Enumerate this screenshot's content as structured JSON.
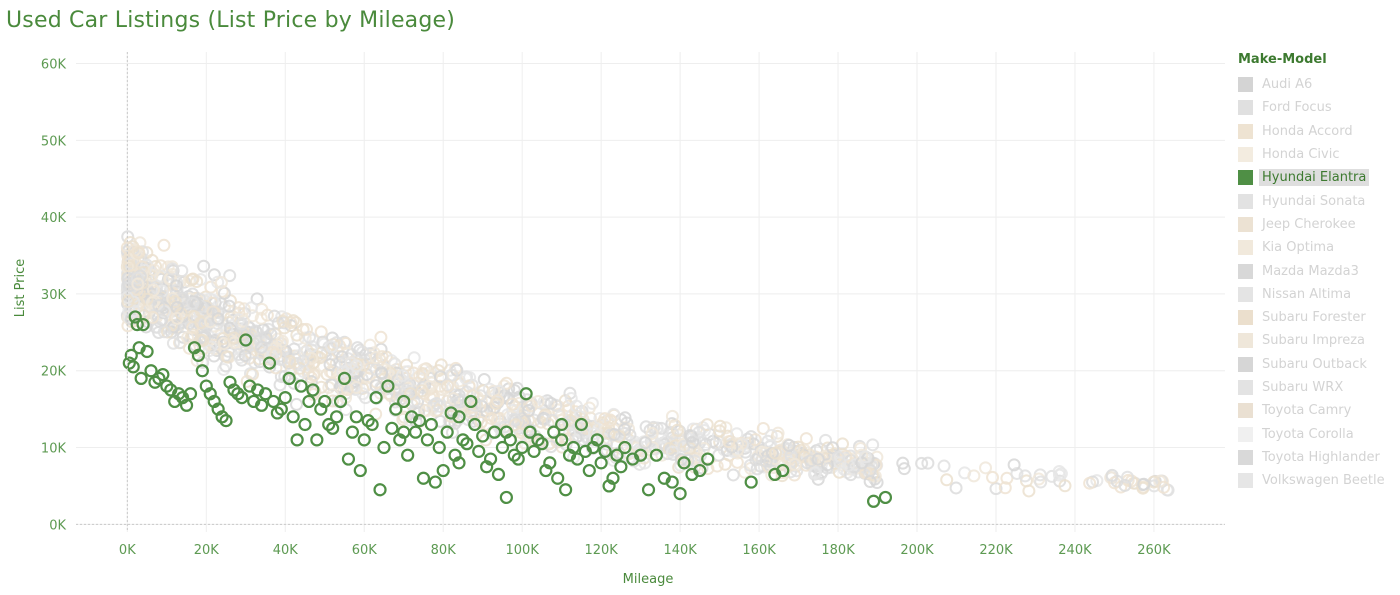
{
  "title": "Used Car Listings (List Price by Mileage)",
  "legend": {
    "title": "Make-Model",
    "items": [
      {
        "label": "Audi A6",
        "color": "#d4d4d4",
        "active": false
      },
      {
        "label": "Ford Focus",
        "color": "#e0e0e0",
        "active": false
      },
      {
        "label": "Honda Accord",
        "color": "#eee3d2",
        "active": false
      },
      {
        "label": "Honda Civic",
        "color": "#f3ece0",
        "active": false
      },
      {
        "label": "Hyundai Elantra",
        "color": "#4f8f45",
        "active": true
      },
      {
        "label": "Hyundai Sonata",
        "color": "#e2e2e2",
        "active": false
      },
      {
        "label": "Jeep Cherokee",
        "color": "#ece2d3",
        "active": false
      },
      {
        "label": "Kia Optima",
        "color": "#f1e9dc",
        "active": false
      },
      {
        "label": "Mazda Mazda3",
        "color": "#d8d8d8",
        "active": false
      },
      {
        "label": "Nissan Altima",
        "color": "#e4e4e4",
        "active": false
      },
      {
        "label": "Subaru Forester",
        "color": "#ebdfcd",
        "active": false
      },
      {
        "label": "Subaru Impreza",
        "color": "#efe7da",
        "active": false
      },
      {
        "label": "Subaru Outback",
        "color": "#d6d6d6",
        "active": false
      },
      {
        "label": "Subaru WRX",
        "color": "#e3e3e3",
        "active": false
      },
      {
        "label": "Toyota Camry",
        "color": "#eae0d2",
        "active": false
      },
      {
        "label": "Toyota Corolla",
        "color": "#f0f0f0",
        "active": false
      },
      {
        "label": "Toyota Highlander",
        "color": "#d9d9d9",
        "active": false
      },
      {
        "label": "Volkswagen Beetle",
        "color": "#e6e6e6",
        "active": false
      }
    ]
  },
  "chart_data": {
    "type": "scatter",
    "title": "Used Car Listings (List Price by Mileage)",
    "xlabel": "Mileage",
    "ylabel": "List Price",
    "xlim": [
      -13000,
      278000
    ],
    "ylim": [
      -1000,
      61500
    ],
    "x_ticks": [
      "0K",
      "20K",
      "40K",
      "60K",
      "80K",
      "100K",
      "120K",
      "140K",
      "160K",
      "180K",
      "200K",
      "220K",
      "240K",
      "260K"
    ],
    "x_tick_values": [
      0,
      20000,
      40000,
      60000,
      80000,
      100000,
      120000,
      140000,
      160000,
      180000,
      200000,
      220000,
      240000,
      260000
    ],
    "y_ticks": [
      "0K",
      "10K",
      "20K",
      "30K",
      "40K",
      "50K",
      "60K"
    ],
    "y_tick_values": [
      0,
      10000,
      20000,
      30000,
      40000,
      50000,
      60000
    ],
    "grid": true,
    "legend_position": "right",
    "highlighted_series": "Hyundai Elantra",
    "series": [
      {
        "name": "Hyundai Elantra",
        "color": "#4f8f45",
        "points": [
          [
            500,
            21000
          ],
          [
            1500,
            20500
          ],
          [
            2000,
            27000
          ],
          [
            2500,
            26000
          ],
          [
            3000,
            23000
          ],
          [
            4000,
            26000
          ],
          [
            5000,
            22500
          ],
          [
            1000,
            22000
          ],
          [
            3500,
            19000
          ],
          [
            6000,
            20000
          ],
          [
            7000,
            18500
          ],
          [
            8000,
            19000
          ],
          [
            9000,
            19500
          ],
          [
            10000,
            18000
          ],
          [
            11000,
            17500
          ],
          [
            12000,
            16000
          ],
          [
            13000,
            17000
          ],
          [
            14000,
            16500
          ],
          [
            15000,
            15500
          ],
          [
            16000,
            17000
          ],
          [
            17000,
            23000
          ],
          [
            18000,
            22000
          ],
          [
            19000,
            20000
          ],
          [
            20000,
            18000
          ],
          [
            21000,
            17000
          ],
          [
            22000,
            16000
          ],
          [
            23000,
            15000
          ],
          [
            24000,
            14000
          ],
          [
            25000,
            13500
          ],
          [
            26000,
            18500
          ],
          [
            27000,
            17500
          ],
          [
            28000,
            17000
          ],
          [
            29000,
            16500
          ],
          [
            30000,
            24000
          ],
          [
            31000,
            18000
          ],
          [
            32000,
            16000
          ],
          [
            33000,
            17500
          ],
          [
            34000,
            15500
          ],
          [
            35000,
            17000
          ],
          [
            36000,
            21000
          ],
          [
            37000,
            16000
          ],
          [
            38000,
            14500
          ],
          [
            39000,
            15000
          ],
          [
            40000,
            16500
          ],
          [
            41000,
            19000
          ],
          [
            42000,
            14000
          ],
          [
            43000,
            11000
          ],
          [
            44000,
            18000
          ],
          [
            45000,
            13000
          ],
          [
            46000,
            16000
          ],
          [
            47000,
            17500
          ],
          [
            48000,
            11000
          ],
          [
            49000,
            15000
          ],
          [
            50000,
            16000
          ],
          [
            51000,
            13000
          ],
          [
            52000,
            12500
          ],
          [
            53000,
            14000
          ],
          [
            54000,
            16000
          ],
          [
            55000,
            19000
          ],
          [
            56000,
            8500
          ],
          [
            57000,
            12000
          ],
          [
            58000,
            14000
          ],
          [
            59000,
            7000
          ],
          [
            60000,
            11000
          ],
          [
            61000,
            13500
          ],
          [
            62000,
            13000
          ],
          [
            63000,
            16500
          ],
          [
            64000,
            4500
          ],
          [
            65000,
            10000
          ],
          [
            66000,
            18000
          ],
          [
            67000,
            12500
          ],
          [
            68000,
            15000
          ],
          [
            69000,
            11000
          ],
          [
            70000,
            12000
          ],
          [
            71000,
            9000
          ],
          [
            72000,
            14000
          ],
          [
            73000,
            12000
          ],
          [
            74000,
            13500
          ],
          [
            75000,
            6000
          ],
          [
            76000,
            11000
          ],
          [
            77000,
            13000
          ],
          [
            78000,
            5500
          ],
          [
            79000,
            10000
          ],
          [
            80000,
            7000
          ],
          [
            81000,
            12000
          ],
          [
            82000,
            14500
          ],
          [
            83000,
            9000
          ],
          [
            84000,
            8000
          ],
          [
            85000,
            11000
          ],
          [
            86000,
            10500
          ],
          [
            87000,
            16000
          ],
          [
            88000,
            13000
          ],
          [
            89000,
            9500
          ],
          [
            90000,
            11500
          ],
          [
            91000,
            7500
          ],
          [
            92000,
            8500
          ],
          [
            93000,
            12000
          ],
          [
            94000,
            6500
          ],
          [
            95000,
            10000
          ],
          [
            96000,
            3500
          ],
          [
            97000,
            11000
          ],
          [
            98000,
            9000
          ],
          [
            99000,
            8500
          ],
          [
            100000,
            10000
          ],
          [
            101000,
            17000
          ],
          [
            102000,
            12000
          ],
          [
            103000,
            9500
          ],
          [
            104000,
            11000
          ],
          [
            105000,
            10500
          ],
          [
            106000,
            7000
          ],
          [
            107000,
            8000
          ],
          [
            108000,
            12000
          ],
          [
            109000,
            6000
          ],
          [
            110000,
            11000
          ],
          [
            111000,
            4500
          ],
          [
            112000,
            9000
          ],
          [
            113000,
            10000
          ],
          [
            114000,
            8500
          ],
          [
            115000,
            13000
          ],
          [
            116000,
            9500
          ],
          [
            117000,
            7000
          ],
          [
            118000,
            10000
          ],
          [
            119000,
            11000
          ],
          [
            120000,
            8000
          ],
          [
            121000,
            9500
          ],
          [
            122000,
            5000
          ],
          [
            123000,
            6000
          ],
          [
            124000,
            9000
          ],
          [
            125000,
            7500
          ],
          [
            126000,
            10000
          ],
          [
            128000,
            8500
          ],
          [
            130000,
            9000
          ],
          [
            132000,
            4500
          ],
          [
            134000,
            9000
          ],
          [
            136000,
            6000
          ],
          [
            138000,
            5500
          ],
          [
            140000,
            4000
          ],
          [
            141000,
            8000
          ],
          [
            143000,
            6500
          ],
          [
            145000,
            7000
          ],
          [
            147000,
            8500
          ],
          [
            158000,
            5500
          ],
          [
            164000,
            6500
          ],
          [
            166000,
            7000
          ],
          [
            189000,
            3000
          ],
          [
            192000,
            3500
          ],
          [
            84000,
            14000
          ],
          [
            70000,
            16000
          ],
          [
            96000,
            12000
          ],
          [
            110000,
            13000
          ]
        ]
      }
    ]
  }
}
